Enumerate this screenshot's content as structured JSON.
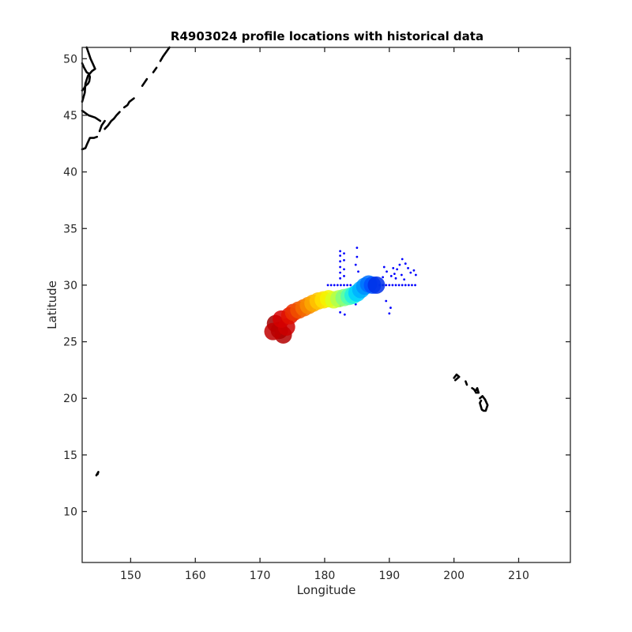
{
  "chart_data": {
    "type": "scatter",
    "title": "R4903024 profile locations with historical data",
    "xlabel": "Longitude",
    "ylabel": "Latitude",
    "xlim": [
      142.5,
      218
    ],
    "ylim": [
      5.5,
      51
    ],
    "xticks": [
      150,
      160,
      170,
      180,
      190,
      200,
      210
    ],
    "yticks": [
      10,
      15,
      20,
      25,
      30,
      35,
      40,
      45,
      50
    ],
    "grid": false,
    "legend": "none",
    "colormap": "jet",
    "colors": {
      "historical": "#0000ff",
      "coast": "#000000",
      "axes": "#262626"
    },
    "profiles": [
      {
        "x": 173.0,
        "y": 26.0,
        "c": "#8b0000"
      },
      {
        "x": 172.4,
        "y": 26.6,
        "c": "#a00000"
      },
      {
        "x": 173.6,
        "y": 25.6,
        "c": "#b30000"
      },
      {
        "x": 172.0,
        "y": 25.9,
        "c": "#c00000"
      },
      {
        "x": 174.1,
        "y": 26.3,
        "c": "#cc0000"
      },
      {
        "x": 173.3,
        "y": 27.0,
        "c": "#d60000"
      },
      {
        "x": 174.6,
        "y": 27.3,
        "c": "#e01000"
      },
      {
        "x": 175.2,
        "y": 27.6,
        "c": "#ea3000"
      },
      {
        "x": 176.0,
        "y": 27.8,
        "c": "#f05000"
      },
      {
        "x": 176.8,
        "y": 28.0,
        "c": "#f46a00"
      },
      {
        "x": 177.5,
        "y": 28.2,
        "c": "#f88a00"
      },
      {
        "x": 178.2,
        "y": 28.4,
        "c": "#fca800"
      },
      {
        "x": 179.0,
        "y": 28.6,
        "c": "#ffc400"
      },
      {
        "x": 179.8,
        "y": 28.7,
        "c": "#ffe000"
      },
      {
        "x": 180.6,
        "y": 28.8,
        "c": "#f4f400"
      },
      {
        "x": 181.4,
        "y": 28.7,
        "c": "#d8ff20"
      },
      {
        "x": 182.2,
        "y": 28.8,
        "c": "#b0ff50"
      },
      {
        "x": 183.0,
        "y": 28.9,
        "c": "#80ff80"
      },
      {
        "x": 183.8,
        "y": 29.0,
        "c": "#50ffb0"
      },
      {
        "x": 184.4,
        "y": 29.1,
        "c": "#20f0e0"
      },
      {
        "x": 185.0,
        "y": 29.3,
        "c": "#00d0ff"
      },
      {
        "x": 185.6,
        "y": 29.6,
        "c": "#00b0ff"
      },
      {
        "x": 186.2,
        "y": 29.9,
        "c": "#0090ff"
      },
      {
        "x": 186.8,
        "y": 30.1,
        "c": "#0070ff"
      },
      {
        "x": 187.4,
        "y": 30.0,
        "c": "#0050ff"
      },
      {
        "x": 188.0,
        "y": 30.0,
        "c": "#0030e8"
      }
    ],
    "historical_points": [
      [
        182.4,
        33.0
      ],
      [
        182.4,
        32.6
      ],
      [
        182.4,
        32.1
      ],
      [
        182.4,
        31.6
      ],
      [
        182.4,
        31.1
      ],
      [
        182.4,
        30.6
      ],
      [
        182.4,
        29.3
      ],
      [
        182.4,
        28.7
      ],
      [
        182.4,
        28.2
      ],
      [
        182.4,
        27.6
      ],
      [
        183.0,
        32.8
      ],
      [
        183.0,
        32.2
      ],
      [
        183.0,
        31.4
      ],
      [
        183.0,
        30.8
      ],
      [
        183.1,
        27.4
      ],
      [
        185.0,
        33.3
      ],
      [
        185.0,
        32.5
      ],
      [
        184.8,
        31.8
      ],
      [
        185.2,
        31.2
      ],
      [
        184.8,
        28.3
      ],
      [
        180.5,
        30.0
      ],
      [
        181.0,
        30.0
      ],
      [
        181.5,
        30.0
      ],
      [
        182.0,
        30.0
      ],
      [
        182.5,
        30.0
      ],
      [
        183.0,
        30.0
      ],
      [
        183.5,
        30.0
      ],
      [
        184.0,
        30.0
      ],
      [
        188.5,
        30.0
      ],
      [
        189.0,
        30.0
      ],
      [
        189.5,
        30.0
      ],
      [
        190.0,
        30.0
      ],
      [
        190.5,
        30.0
      ],
      [
        191.0,
        30.0
      ],
      [
        191.5,
        30.0
      ],
      [
        192.0,
        30.0
      ],
      [
        192.5,
        30.0
      ],
      [
        193.0,
        30.0
      ],
      [
        193.5,
        30.0
      ],
      [
        194.0,
        30.0
      ],
      [
        190.2,
        28.0
      ],
      [
        190.0,
        27.5
      ],
      [
        189.5,
        28.6
      ],
      [
        190.3,
        30.8
      ],
      [
        190.8,
        31.0
      ],
      [
        191.2,
        31.4
      ],
      [
        191.6,
        31.8
      ],
      [
        192.0,
        32.3
      ],
      [
        192.5,
        31.9
      ],
      [
        192.9,
        31.5
      ],
      [
        193.3,
        31.1
      ],
      [
        191.0,
        30.6
      ],
      [
        191.9,
        30.9
      ],
      [
        189.6,
        31.2
      ],
      [
        189.2,
        31.6
      ],
      [
        189.0,
        30.7
      ],
      [
        190.6,
        31.5
      ],
      [
        192.3,
        30.5
      ],
      [
        193.8,
        31.3
      ],
      [
        194.1,
        30.9
      ]
    ],
    "coastlines": [
      [
        [
          156.0,
          51.0
        ],
        [
          155.5,
          50.6
        ],
        [
          155.0,
          50.2
        ],
        [
          154.6,
          49.8
        ]
      ],
      [
        [
          154.0,
          49.2
        ],
        [
          153.5,
          48.8
        ]
      ],
      [
        [
          152.5,
          48.2
        ],
        [
          151.8,
          47.6
        ]
      ],
      [
        [
          150.5,
          46.5
        ],
        [
          149.8,
          46.2
        ],
        [
          149.5,
          45.9
        ],
        [
          149.0,
          45.7
        ]
      ],
      [
        [
          148.3,
          45.3
        ],
        [
          147.8,
          45.0
        ],
        [
          147.4,
          44.7
        ],
        [
          147.0,
          44.5
        ],
        [
          146.5,
          44.1
        ],
        [
          146.0,
          43.8
        ]
      ],
      [
        [
          146.0,
          44.5
        ],
        [
          145.5,
          44.1
        ],
        [
          145.2,
          43.6
        ]
      ],
      [
        [
          144.8,
          43.1
        ],
        [
          144.3,
          43.0
        ],
        [
          143.7,
          43.0
        ],
        [
          143.3,
          42.5
        ],
        [
          143.0,
          42.1
        ],
        [
          142.5,
          42.0
        ]
      ],
      [
        [
          145.3,
          44.5
        ],
        [
          144.5,
          44.8
        ],
        [
          143.5,
          45.0
        ],
        [
          142.5,
          45.4
        ]
      ],
      [
        [
          143.2,
          51.0
        ],
        [
          143.5,
          50.5
        ],
        [
          143.8,
          50.0
        ],
        [
          144.2,
          49.5
        ],
        [
          144.5,
          49.1
        ],
        [
          144.0,
          48.9
        ],
        [
          143.4,
          48.5
        ],
        [
          143.0,
          47.8
        ],
        [
          142.9,
          47.0
        ],
        [
          142.5,
          46.2
        ]
      ],
      [
        [
          142.5,
          49.6
        ],
        [
          142.8,
          49.2
        ],
        [
          143.2,
          48.8
        ],
        [
          143.5,
          48.7
        ],
        [
          143.7,
          48.4
        ],
        [
          143.6,
          48.0
        ],
        [
          143.4,
          47.8
        ],
        [
          143.0,
          47.6
        ],
        [
          142.8,
          47.4
        ],
        [
          142.5,
          47.2
        ]
      ],
      [
        [
          144.7,
          13.2
        ],
        [
          145.0,
          13.5
        ],
        [
          144.9,
          13.3
        ]
      ],
      [
        [
          200.0,
          21.8
        ],
        [
          200.4,
          22.1
        ],
        [
          200.8,
          21.9
        ],
        [
          200.2,
          21.6
        ]
      ],
      [
        [
          201.8,
          21.5
        ],
        [
          202.0,
          21.2
        ]
      ],
      [
        [
          202.8,
          20.9
        ],
        [
          203.1,
          20.8
        ],
        [
          203.3,
          20.6
        ],
        [
          203.6,
          20.9
        ],
        [
          203.8,
          20.5
        ],
        [
          203.4,
          20.5
        ]
      ],
      [
        [
          204.0,
          20.0
        ],
        [
          204.4,
          20.2
        ],
        [
          204.8,
          19.9
        ],
        [
          205.2,
          19.4
        ],
        [
          204.9,
          18.9
        ],
        [
          204.6,
          18.9
        ],
        [
          204.3,
          19.0
        ],
        [
          204.0,
          19.6
        ],
        [
          204.2,
          19.8
        ]
      ]
    ]
  }
}
